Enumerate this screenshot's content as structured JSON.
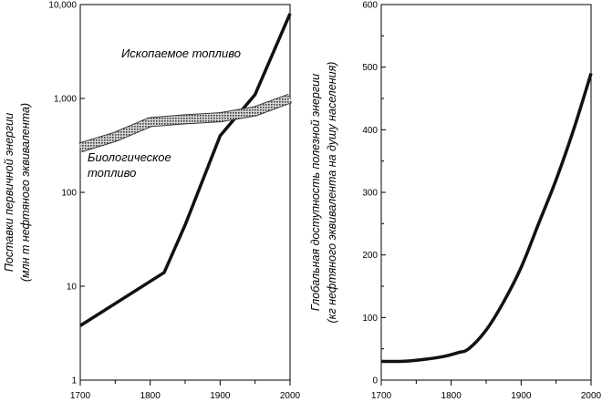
{
  "chart_data": [
    {
      "type": "line",
      "yscale": "log",
      "ylabel": [
        "Поставки первичной энергии",
        "(млн т нефтяного эквивалента)"
      ],
      "xlim": [
        1700,
        2000
      ],
      "ylim": [
        1,
        10000
      ],
      "x_ticks": [
        "1700",
        "1800",
        "1900",
        "2000"
      ],
      "y_ticks": [
        {
          "value": 1,
          "label": "1"
        },
        {
          "value": 10,
          "label": "10"
        },
        {
          "value": 100,
          "label": "100"
        },
        {
          "value": 1000,
          "label": "1,000"
        },
        {
          "value": 10000,
          "label": "10,000"
        }
      ],
      "series": [
        {
          "name": "Ископаемое топливо",
          "style": "solid",
          "color": "#111111",
          "x": [
            1700,
            1820,
            1850,
            1900,
            1950,
            2000
          ],
          "y": [
            3.8,
            14,
            45,
            400,
            1100,
            8000
          ]
        },
        {
          "name": "Биологическое топливо",
          "style": "crosshatch",
          "color": "#555555",
          "x": [
            1700,
            1750,
            1800,
            1850,
            1900,
            1950,
            2000
          ],
          "y": [
            300,
            390,
            560,
            600,
            630,
            730,
            1000
          ]
        }
      ],
      "annotations": [
        {
          "lines": [
            "Ископаемое топливо"
          ],
          "series": 0
        },
        {
          "lines": [
            "Биологическое",
            "топливо"
          ],
          "series": 1
        }
      ]
    },
    {
      "type": "line",
      "yscale": "linear",
      "ylabel": [
        "Глобальная доступность полезной энергии",
        "(кг нефтяного эквивалента на душу населения)"
      ],
      "xlim": [
        1700,
        2000
      ],
      "ylim": [
        0,
        600
      ],
      "x_ticks": [
        "1700",
        "1800",
        "1900",
        "2000"
      ],
      "y_ticks": [
        {
          "value": 0,
          "label": "0"
        },
        {
          "value": 100,
          "label": "100"
        },
        {
          "value": 200,
          "label": "200"
        },
        {
          "value": 300,
          "label": "300"
        },
        {
          "value": 400,
          "label": "400"
        },
        {
          "value": 500,
          "label": "500"
        },
        {
          "value": 600,
          "label": "600"
        }
      ],
      "series": [
        {
          "name": "",
          "style": "solid",
          "color": "#111111",
          "x": [
            1700,
            1730,
            1760,
            1790,
            1810,
            1825,
            1850,
            1875,
            1900,
            1925,
            1950,
            1975,
            2000
          ],
          "y": [
            30,
            30,
            33,
            38,
            44,
            50,
            80,
            125,
            180,
            250,
            320,
            400,
            490
          ]
        }
      ]
    }
  ]
}
